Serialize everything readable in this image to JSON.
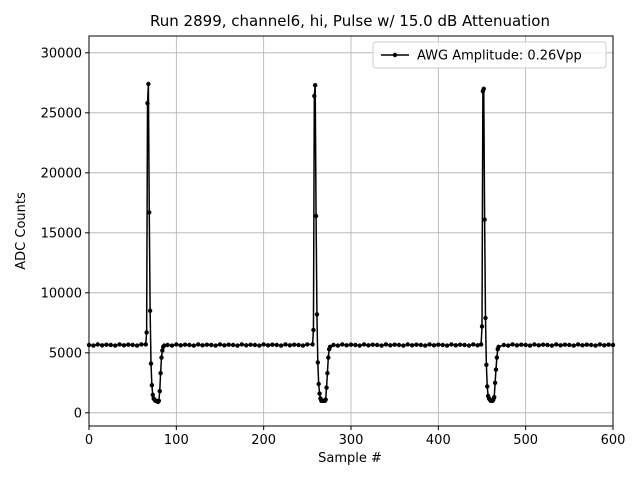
{
  "chart_data": {
    "type": "line",
    "title": "Run 2899, channel6, hi, Pulse w/ 15.0 dB Attenuation",
    "xlabel": "Sample #",
    "ylabel": "ADC Counts",
    "x": [
      0,
      5,
      10,
      15,
      20,
      25,
      30,
      35,
      40,
      45,
      50,
      55,
      60,
      65,
      66,
      67,
      68,
      69,
      70,
      71,
      72,
      73,
      74,
      75,
      76,
      77,
      78,
      79,
      80,
      81,
      82,
      83,
      84,
      85,
      86,
      90,
      95,
      100,
      105,
      110,
      115,
      120,
      125,
      130,
      135,
      140,
      145,
      150,
      155,
      160,
      165,
      170,
      175,
      180,
      185,
      190,
      195,
      200,
      205,
      210,
      215,
      220,
      225,
      230,
      235,
      240,
      245,
      250,
      256,
      257,
      258,
      259,
      260,
      261,
      262,
      263,
      264,
      265,
      266,
      267,
      268,
      269,
      270,
      271,
      272,
      273,
      274,
      275,
      276,
      280,
      285,
      290,
      295,
      300,
      305,
      310,
      315,
      320,
      325,
      330,
      335,
      340,
      345,
      350,
      355,
      360,
      365,
      370,
      375,
      380,
      385,
      390,
      395,
      400,
      405,
      410,
      415,
      420,
      425,
      430,
      435,
      440,
      445,
      449,
      450,
      451,
      452,
      453,
      454,
      455,
      456,
      457,
      458,
      459,
      460,
      461,
      462,
      463,
      464,
      465,
      466,
      467,
      468,
      469,
      475,
      480,
      485,
      490,
      495,
      500,
      505,
      510,
      515,
      520,
      525,
      530,
      535,
      540,
      545,
      550,
      555,
      560,
      565,
      570,
      575,
      580,
      585,
      590,
      595,
      600
    ],
    "series": [
      {
        "name": "AWG Amplitude: 0.26Vpp",
        "color": "#000000",
        "values": [
          5650,
          5600,
          5700,
          5620,
          5680,
          5650,
          5600,
          5700,
          5620,
          5680,
          5650,
          5600,
          5700,
          5700,
          6700,
          25800,
          27400,
          16700,
          8500,
          4100,
          2300,
          1500,
          1200,
          1100,
          1000,
          1000,
          950,
          900,
          1000,
          1800,
          3300,
          4600,
          5200,
          5500,
          5600,
          5650,
          5600,
          5700,
          5620,
          5680,
          5650,
          5600,
          5700,
          5620,
          5680,
          5650,
          5600,
          5700,
          5620,
          5680,
          5650,
          5600,
          5700,
          5620,
          5680,
          5650,
          5600,
          5700,
          5620,
          5680,
          5650,
          5600,
          5700,
          5620,
          5680,
          5650,
          5600,
          5700,
          5700,
          6900,
          26400,
          27300,
          16400,
          8200,
          4200,
          2400,
          1600,
          1200,
          1000,
          1000,
          1000,
          1000,
          1000,
          1100,
          2100,
          3300,
          4600,
          5300,
          5500,
          5650,
          5600,
          5700,
          5620,
          5680,
          5650,
          5600,
          5700,
          5620,
          5680,
          5650,
          5600,
          5700,
          5620,
          5680,
          5650,
          5600,
          5700,
          5620,
          5680,
          5650,
          5600,
          5700,
          5620,
          5680,
          5650,
          5600,
          5700,
          5620,
          5680,
          5650,
          5600,
          5700,
          5620,
          5700,
          7200,
          26800,
          27000,
          16100,
          7900,
          4000,
          2200,
          1400,
          1200,
          1100,
          1000,
          1000,
          1000,
          1100,
          1300,
          2500,
          3600,
          4600,
          5300,
          5500,
          5650,
          5600,
          5700,
          5620,
          5680,
          5650,
          5600,
          5700,
          5620,
          5680,
          5650,
          5600,
          5700,
          5620,
          5680,
          5650,
          5600,
          5700,
          5620,
          5680,
          5650,
          5600,
          5700,
          5620,
          5680,
          5650
        ]
      }
    ],
    "xlim": [
      0,
      600
    ],
    "ylim": [
      -1100,
      31400
    ],
    "xticks": [
      0,
      100,
      200,
      300,
      400,
      500,
      600
    ],
    "yticks": [
      0,
      5000,
      10000,
      15000,
      20000,
      25000,
      30000
    ],
    "grid": true,
    "legend": "upper right"
  }
}
